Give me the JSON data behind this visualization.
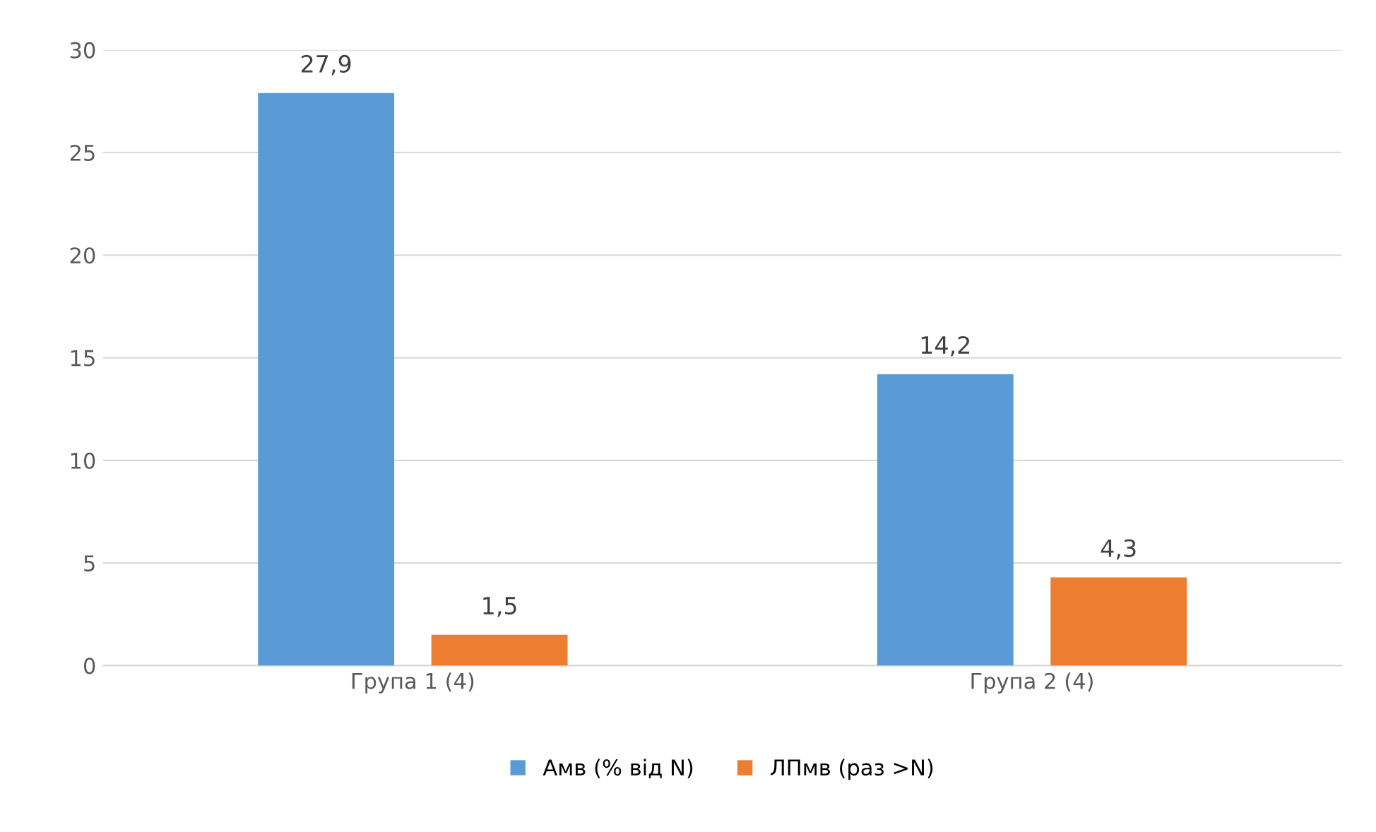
{
  "chart_data": {
    "type": "bar",
    "categories": [
      "Група 1 (4)",
      "Група 2 (4)"
    ],
    "series": [
      {
        "name": "Амв (% від N)",
        "color": "#5b9bd5",
        "values": [
          27.9,
          14.2
        ],
        "value_labels": [
          "27,9",
          "14,2"
        ]
      },
      {
        "name": "ЛПмв (раз >N)",
        "color": "#ed7d31",
        "values": [
          1.5,
          4.3
        ],
        "value_labels": [
          "1,5",
          "4,3"
        ]
      }
    ],
    "ylim": [
      0,
      30
    ],
    "yticks": [
      0,
      5,
      10,
      15,
      20,
      25,
      30
    ],
    "grid": "y",
    "legend": "bottom"
  }
}
